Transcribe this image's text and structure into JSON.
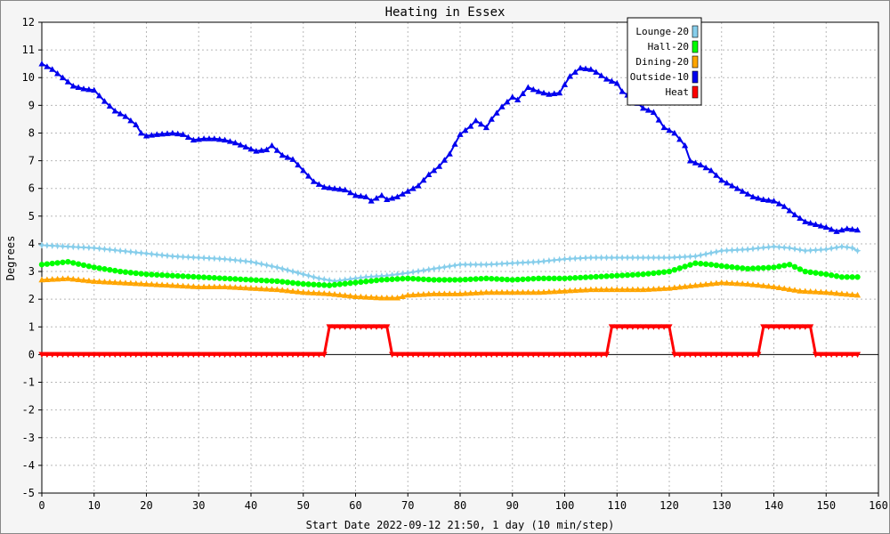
{
  "chart_data": {
    "type": "line",
    "title": "Heating in Essex",
    "xlabel": "Start Date 2022-09-12 21:50, 1 day (10 min/step)",
    "ylabel": "Degrees",
    "xlim": [
      0,
      160
    ],
    "ylim": [
      -5,
      12
    ],
    "x_ticks": [
      0,
      10,
      20,
      30,
      40,
      50,
      60,
      70,
      80,
      90,
      100,
      110,
      120,
      130,
      140,
      150,
      160
    ],
    "y_ticks": [
      -5,
      -4,
      -3,
      -2,
      -1,
      0,
      1,
      2,
      3,
      4,
      5,
      6,
      7,
      8,
      9,
      10,
      11,
      12
    ],
    "grid": true,
    "legend_position": "top-right",
    "series": [
      {
        "name": "Lounge-20",
        "color": "#87ceeb",
        "marker": "star",
        "points": [
          [
            0,
            3.95
          ],
          [
            5,
            3.9
          ],
          [
            10,
            3.85
          ],
          [
            15,
            3.75
          ],
          [
            20,
            3.65
          ],
          [
            25,
            3.55
          ],
          [
            30,
            3.5
          ],
          [
            35,
            3.45
          ],
          [
            40,
            3.35
          ],
          [
            45,
            3.15
          ],
          [
            50,
            2.9
          ],
          [
            53,
            2.75
          ],
          [
            56,
            2.65
          ],
          [
            58,
            2.7
          ],
          [
            62,
            2.8
          ],
          [
            66,
            2.85
          ],
          [
            70,
            2.95
          ],
          [
            75,
            3.1
          ],
          [
            80,
            3.25
          ],
          [
            85,
            3.25
          ],
          [
            90,
            3.3
          ],
          [
            95,
            3.35
          ],
          [
            100,
            3.45
          ],
          [
            105,
            3.5
          ],
          [
            110,
            3.5
          ],
          [
            115,
            3.5
          ],
          [
            120,
            3.5
          ],
          [
            125,
            3.55
          ],
          [
            130,
            3.75
          ],
          [
            135,
            3.8
          ],
          [
            140,
            3.9
          ],
          [
            143,
            3.85
          ],
          [
            146,
            3.75
          ],
          [
            150,
            3.8
          ],
          [
            153,
            3.9
          ],
          [
            155,
            3.85
          ],
          [
            156,
            3.75
          ]
        ]
      },
      {
        "name": "Hall-20",
        "color": "#00ff00",
        "marker": "circle",
        "points": [
          [
            0,
            3.25
          ],
          [
            5,
            3.35
          ],
          [
            10,
            3.15
          ],
          [
            15,
            3.0
          ],
          [
            20,
            2.9
          ],
          [
            25,
            2.85
          ],
          [
            30,
            2.8
          ],
          [
            35,
            2.75
          ],
          [
            40,
            2.7
          ],
          [
            45,
            2.65
          ],
          [
            50,
            2.55
          ],
          [
            55,
            2.5
          ],
          [
            60,
            2.6
          ],
          [
            65,
            2.7
          ],
          [
            70,
            2.75
          ],
          [
            75,
            2.7
          ],
          [
            80,
            2.7
          ],
          [
            85,
            2.75
          ],
          [
            90,
            2.7
          ],
          [
            95,
            2.75
          ],
          [
            100,
            2.75
          ],
          [
            105,
            2.8
          ],
          [
            110,
            2.85
          ],
          [
            115,
            2.9
          ],
          [
            120,
            3.0
          ],
          [
            125,
            3.3
          ],
          [
            128,
            3.25
          ],
          [
            130,
            3.2
          ],
          [
            135,
            3.1
          ],
          [
            140,
            3.15
          ],
          [
            143,
            3.25
          ],
          [
            146,
            3.0
          ],
          [
            150,
            2.9
          ],
          [
            153,
            2.8
          ],
          [
            156,
            2.8
          ]
        ]
      },
      {
        "name": "Dining-20",
        "color": "#ffa500",
        "marker": "triangle",
        "points": [
          [
            0,
            2.7
          ],
          [
            5,
            2.75
          ],
          [
            10,
            2.65
          ],
          [
            15,
            2.6
          ],
          [
            20,
            2.55
          ],
          [
            25,
            2.5
          ],
          [
            30,
            2.45
          ],
          [
            35,
            2.45
          ],
          [
            40,
            2.4
          ],
          [
            45,
            2.35
          ],
          [
            50,
            2.25
          ],
          [
            55,
            2.2
          ],
          [
            60,
            2.1
          ],
          [
            65,
            2.05
          ],
          [
            68,
            2.05
          ],
          [
            70,
            2.15
          ],
          [
            75,
            2.2
          ],
          [
            80,
            2.2
          ],
          [
            85,
            2.25
          ],
          [
            90,
            2.25
          ],
          [
            95,
            2.25
          ],
          [
            100,
            2.3
          ],
          [
            105,
            2.35
          ],
          [
            110,
            2.35
          ],
          [
            115,
            2.35
          ],
          [
            120,
            2.4
          ],
          [
            125,
            2.5
          ],
          [
            130,
            2.6
          ],
          [
            135,
            2.55
          ],
          [
            140,
            2.45
          ],
          [
            145,
            2.3
          ],
          [
            150,
            2.25
          ],
          [
            153,
            2.2
          ],
          [
            156,
            2.15
          ]
        ]
      },
      {
        "name": "Outside-10",
        "color": "#0000ee",
        "marker": "triangle",
        "points": [
          [
            0,
            10.5
          ],
          [
            2,
            10.3
          ],
          [
            4,
            10.0
          ],
          [
            6,
            9.7
          ],
          [
            8,
            9.6
          ],
          [
            10,
            9.55
          ],
          [
            12,
            9.15
          ],
          [
            14,
            8.8
          ],
          [
            16,
            8.6
          ],
          [
            18,
            8.3
          ],
          [
            19,
            8.0
          ],
          [
            20,
            7.9
          ],
          [
            22,
            7.95
          ],
          [
            25,
            8.0
          ],
          [
            27,
            7.95
          ],
          [
            29,
            7.75
          ],
          [
            31,
            7.8
          ],
          [
            33,
            7.8
          ],
          [
            35,
            7.75
          ],
          [
            37,
            7.65
          ],
          [
            39,
            7.5
          ],
          [
            41,
            7.35
          ],
          [
            43,
            7.4
          ],
          [
            44,
            7.55
          ],
          [
            46,
            7.2
          ],
          [
            48,
            7.05
          ],
          [
            50,
            6.65
          ],
          [
            52,
            6.25
          ],
          [
            54,
            6.05
          ],
          [
            56,
            6.0
          ],
          [
            58,
            5.95
          ],
          [
            60,
            5.75
          ],
          [
            62,
            5.7
          ],
          [
            63,
            5.55
          ],
          [
            65,
            5.75
          ],
          [
            66,
            5.6
          ],
          [
            68,
            5.7
          ],
          [
            70,
            5.9
          ],
          [
            72,
            6.1
          ],
          [
            74,
            6.5
          ],
          [
            76,
            6.8
          ],
          [
            78,
            7.25
          ],
          [
            80,
            7.95
          ],
          [
            82,
            8.25
          ],
          [
            83,
            8.45
          ],
          [
            85,
            8.2
          ],
          [
            86,
            8.5
          ],
          [
            88,
            8.95
          ],
          [
            90,
            9.3
          ],
          [
            91,
            9.2
          ],
          [
            93,
            9.65
          ],
          [
            95,
            9.5
          ],
          [
            97,
            9.4
          ],
          [
            99,
            9.45
          ],
          [
            101,
            10.05
          ],
          [
            103,
            10.35
          ],
          [
            105,
            10.3
          ],
          [
            106,
            10.2
          ],
          [
            108,
            9.95
          ],
          [
            110,
            9.8
          ],
          [
            111,
            9.5
          ],
          [
            113,
            9.25
          ],
          [
            115,
            8.9
          ],
          [
            117,
            8.75
          ],
          [
            119,
            8.2
          ],
          [
            121,
            8.0
          ],
          [
            123,
            7.55
          ],
          [
            124,
            7.0
          ],
          [
            126,
            6.85
          ],
          [
            128,
            6.65
          ],
          [
            130,
            6.3
          ],
          [
            132,
            6.1
          ],
          [
            134,
            5.9
          ],
          [
            136,
            5.7
          ],
          [
            138,
            5.6
          ],
          [
            140,
            5.55
          ],
          [
            142,
            5.35
          ],
          [
            144,
            5.05
          ],
          [
            146,
            4.8
          ],
          [
            148,
            4.7
          ],
          [
            150,
            4.6
          ],
          [
            152,
            4.45
          ],
          [
            154,
            4.55
          ],
          [
            156,
            4.5
          ]
        ]
      },
      {
        "name": "Heat",
        "color": "#ff0000",
        "marker": "triangle-down",
        "points": [
          [
            0,
            0
          ],
          [
            54,
            0
          ],
          [
            55,
            1
          ],
          [
            66,
            1
          ],
          [
            67,
            0
          ],
          [
            108,
            0
          ],
          [
            109,
            1
          ],
          [
            120,
            1
          ],
          [
            121,
            0
          ],
          [
            137,
            0
          ],
          [
            138,
            1
          ],
          [
            147,
            1
          ],
          [
            148,
            0
          ],
          [
            156,
            0
          ]
        ]
      }
    ]
  }
}
